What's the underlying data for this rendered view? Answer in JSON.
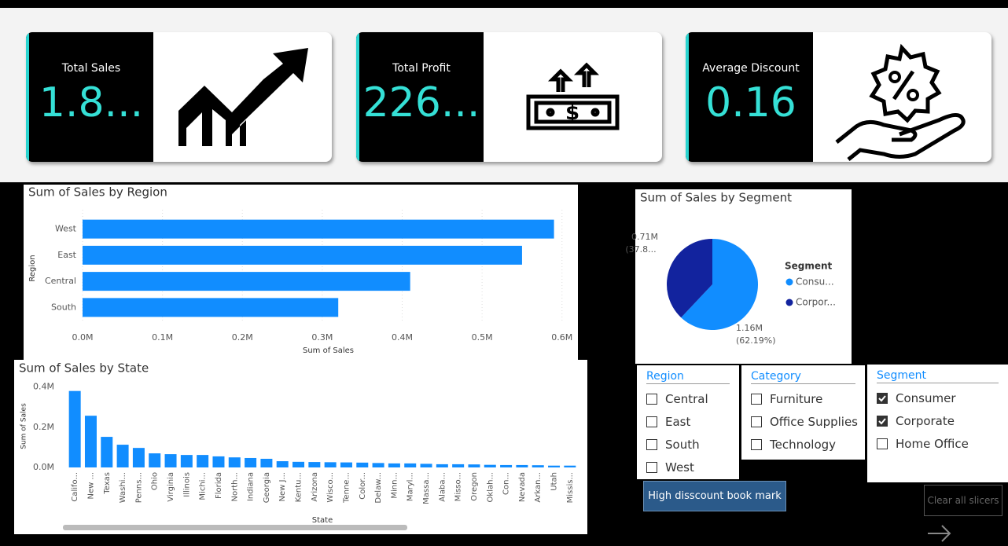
{
  "cards": [
    {
      "title": "Total Sales",
      "value": "1.8..."
    },
    {
      "title": "Total Profit",
      "value": "226..."
    },
    {
      "title": "Average Discount",
      "value": "0.16"
    }
  ],
  "chart_data": [
    {
      "type": "hbar",
      "title": "Sum of Sales by Region",
      "categories": [
        "West",
        "East",
        "Central",
        "South"
      ],
      "values": [
        590000,
        550000,
        410000,
        320000
      ],
      "color": "#118dff",
      "xlim": [
        0,
        615000
      ],
      "xticks": [
        {
          "value": 0,
          "label": "0.0M"
        },
        {
          "value": 100000,
          "label": "0.1M"
        },
        {
          "value": 200000,
          "label": "0.2M"
        },
        {
          "value": 300000,
          "label": "0.3M"
        },
        {
          "value": 400000,
          "label": "0.4M"
        },
        {
          "value": 500000,
          "label": "0.5M"
        },
        {
          "value": 600000,
          "label": "0.6M"
        }
      ],
      "x_label": "Sum of Sales",
      "y_label": "Region",
      "grid": true
    },
    {
      "type": "bar",
      "title": "Sum of Sales by State",
      "categories": [
        "Califo...",
        "New ...",
        "Texas",
        "Washi...",
        "Penns...",
        "Ohio",
        "Virginia",
        "Illinois",
        "Michi...",
        "Florida",
        "North...",
        "Indiana",
        "Georgia",
        "New J...",
        "Kentu...",
        "Arizona",
        "Wisco...",
        "Tenne...",
        "Color...",
        "Delaw...",
        "Minn...",
        "Maryl...",
        "Massa...",
        "Alaba...",
        "Misso...",
        "Oregon",
        "Oklah...",
        "Con...",
        "Nevada",
        "Arkan...",
        "Utah",
        "Missis..."
      ],
      "values": [
        380000,
        257000,
        152000,
        113000,
        97000,
        70000,
        66000,
        62000,
        62000,
        55000,
        50000,
        47000,
        43000,
        31000,
        28000,
        27000,
        26000,
        25000,
        24000,
        22000,
        20000,
        20000,
        18000,
        16000,
        16000,
        15000,
        13000,
        12000,
        12000,
        11000,
        9000,
        9000
      ],
      "color": "#118dff",
      "ylim": [
        0,
        410000
      ],
      "yticks": [
        {
          "value": 0,
          "label": "0.0M"
        },
        {
          "value": 200000,
          "label": "0.2M"
        },
        {
          "value": 400000,
          "label": "0.4M"
        }
      ],
      "x_label": "State",
      "y_label": "Sum of Sales"
    },
    {
      "type": "pie",
      "title": "Sum of Sales by Segment",
      "legend_title": "Segment",
      "categories": [
        "Consu...",
        "Corpor..."
      ],
      "values": [
        1160000,
        710000
      ],
      "value_labels": [
        "1.16M",
        "0.71M"
      ],
      "percent_labels": [
        "(62.19%)",
        "(37.8..."
      ],
      "colors": [
        "#118dff",
        "#12239e"
      ]
    }
  ],
  "slicers": [
    {
      "title": "Region",
      "items": [
        {
          "label": "Central",
          "checked": false
        },
        {
          "label": "East",
          "checked": false
        },
        {
          "label": "South",
          "checked": false
        },
        {
          "label": "West",
          "checked": false
        }
      ]
    },
    {
      "title": "Category",
      "items": [
        {
          "label": "Furniture",
          "checked": false
        },
        {
          "label": "Office Supplies",
          "checked": false
        },
        {
          "label": "Technology",
          "checked": false
        }
      ]
    },
    {
      "title": "Segment",
      "items": [
        {
          "label": "Consumer",
          "checked": true
        },
        {
          "label": "Corporate",
          "checked": true
        },
        {
          "label": "Home Office",
          "checked": false
        }
      ]
    }
  ],
  "buttons": [
    "High disscount book mark",
    "Clear all slicers"
  ]
}
